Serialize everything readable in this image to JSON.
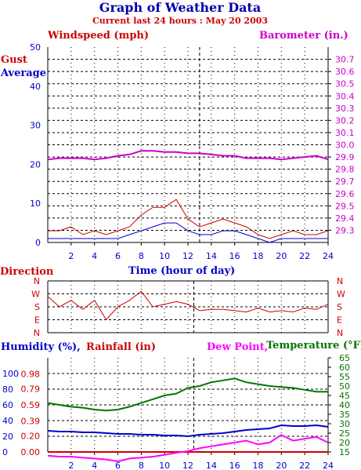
{
  "title": "Graph of Weather Data",
  "subtitle": "Current last 24 hours : May 20 2003",
  "colors": {
    "gust": "#cc0000",
    "average": "#0000cc",
    "barometer": "#cc00cc",
    "direction": "#cc0000",
    "humidity": "#0000cc",
    "rainfall": "#cc0000",
    "dewpoint": "#ff00ff",
    "temperature": "#007700",
    "axis_blue": "#0000cc"
  },
  "chart_data": [
    {
      "type": "line",
      "panel": "wind",
      "left_label": "Windspeed (mph)",
      "right_label": "Barometer (in.)",
      "legend": [
        "Gust",
        "Average"
      ],
      "xlabel": "Time (hour of day)",
      "xlim": [
        0,
        24
      ],
      "x_ticks": [
        "2",
        "4",
        "6",
        "8",
        "10",
        "12",
        "14",
        "16",
        "18",
        "20",
        "22",
        "24"
      ],
      "ylim_left": [
        0,
        50
      ],
      "y_ticks_left": [
        "0",
        "10",
        "20",
        "30",
        "40",
        "50"
      ],
      "ylim_right": [
        29.2,
        30.8
      ],
      "y_ticks_right": [
        "29.3",
        "29.4",
        "29.5",
        "29.6",
        "29.7",
        "29.8",
        "29.9",
        "30.0",
        "30.1",
        "30.2",
        "30.3",
        "30.4",
        "30.5",
        "30.6",
        "30.7"
      ],
      "grid": true,
      "marker_hour": 13,
      "series": [
        {
          "name": "Gust",
          "axis": "left",
          "x": [
            0,
            1,
            2,
            3,
            4,
            5,
            6,
            7,
            8,
            9,
            10,
            11,
            12,
            13,
            14,
            15,
            16,
            17,
            18,
            19,
            20,
            21,
            22,
            23,
            24
          ],
          "values": [
            3,
            3,
            4,
            2,
            3,
            2,
            3,
            4,
            7,
            9,
            9,
            11,
            6,
            4,
            5,
            6,
            5,
            4,
            2,
            1,
            2,
            3,
            2,
            2,
            3
          ]
        },
        {
          "name": "Average",
          "axis": "left",
          "x": [
            0,
            1,
            2,
            3,
            4,
            5,
            6,
            7,
            8,
            9,
            10,
            11,
            12,
            13,
            14,
            15,
            16,
            17,
            18,
            19,
            20,
            21,
            22,
            23,
            24
          ],
          "values": [
            1,
            1,
            1,
            1,
            1,
            1,
            1,
            2,
            3,
            4,
            5,
            5,
            3,
            2,
            2,
            3,
            3,
            2,
            1,
            0,
            1,
            1,
            1,
            1,
            1
          ]
        },
        {
          "name": "Barometer",
          "axis": "right",
          "x": [
            0,
            1,
            2,
            3,
            4,
            5,
            6,
            7,
            8,
            9,
            10,
            11,
            12,
            13,
            14,
            15,
            16,
            17,
            18,
            19,
            20,
            21,
            22,
            23,
            24
          ],
          "values": [
            29.88,
            29.89,
            29.89,
            29.89,
            29.88,
            29.89,
            29.91,
            29.92,
            29.95,
            29.95,
            29.94,
            29.94,
            29.93,
            29.93,
            29.92,
            29.91,
            29.91,
            29.89,
            29.89,
            29.89,
            29.88,
            29.89,
            29.9,
            29.91,
            29.88
          ]
        }
      ]
    },
    {
      "type": "line",
      "panel": "direction",
      "label": "Direction",
      "xlim": [
        0,
        24
      ],
      "y_categories": [
        "N",
        "W",
        "S",
        "E",
        "N"
      ],
      "series": [
        {
          "name": "Direction",
          "x": [
            0,
            1,
            2,
            3,
            4,
            5,
            6,
            7,
            8,
            9,
            10,
            11,
            12,
            13,
            14,
            15,
            16,
            17,
            18,
            19,
            20,
            21,
            22,
            23,
            24
          ],
          "values": [
            1.2,
            2,
            1.5,
            2.2,
            1.5,
            3,
            2,
            1.5,
            0.8,
            2,
            1.8,
            1.6,
            1.8,
            2.3,
            2.2,
            2.2,
            2.3,
            2.4,
            2.1,
            2.4,
            2.3,
            2.4,
            2.1,
            2.2,
            1.8
          ]
        }
      ]
    },
    {
      "type": "line",
      "panel": "humidity",
      "labels": [
        "Humidity (%),",
        "Rainfall (in)",
        "Dew Point,",
        "Temperature (°F)"
      ],
      "xlim": [
        0,
        24
      ],
      "x_ticks": [
        "2",
        "4",
        "6",
        "8",
        "10",
        "12",
        "14",
        "16",
        "18",
        "20",
        "22",
        "24"
      ],
      "ylim_humidity": [
        0,
        120
      ],
      "y_ticks_humidity": [
        "0",
        "20",
        "40",
        "60",
        "80",
        "100"
      ],
      "ylim_rainfall": [
        0,
        1.18
      ],
      "y_ticks_rainfall": [
        "0.00",
        "0.20",
        "0.39",
        "0.59",
        "0.79",
        "0.98"
      ],
      "ylim_temperature": [
        15,
        65
      ],
      "y_ticks_temperature": [
        "15",
        "20",
        "25",
        "30",
        "35",
        "40",
        "45",
        "50",
        "55",
        "60",
        "65"
      ],
      "grid": true,
      "series": [
        {
          "name": "Humidity",
          "axis": "humidity",
          "x": [
            0,
            1,
            2,
            3,
            4,
            5,
            6,
            7,
            8,
            9,
            10,
            11,
            12,
            13,
            14,
            15,
            16,
            17,
            18,
            19,
            20,
            21,
            22,
            23,
            24
          ],
          "values": [
            27,
            26,
            26,
            25,
            25,
            24,
            23,
            23,
            22,
            22,
            21,
            21,
            20,
            22,
            23,
            24,
            26,
            28,
            29,
            30,
            34,
            33,
            33,
            34,
            32
          ]
        },
        {
          "name": "Rainfall",
          "axis": "rainfall",
          "x": [
            0,
            1,
            2,
            3,
            4,
            5,
            6,
            7,
            8,
            9,
            10,
            11,
            12,
            13,
            14,
            15,
            16,
            17,
            18,
            19,
            20,
            21,
            22,
            23,
            24
          ],
          "values": [
            0,
            0,
            0,
            0,
            0,
            0,
            0,
            0,
            0,
            0,
            0,
            0,
            0,
            0,
            0,
            0,
            0,
            0,
            0,
            0,
            0,
            0,
            0,
            0,
            0
          ]
        },
        {
          "name": "Dew Point",
          "axis": "temperature",
          "x": [
            0,
            1,
            2,
            3,
            4,
            5,
            6,
            7,
            8,
            9,
            10,
            11,
            12,
            13,
            14,
            15,
            16,
            17,
            18,
            19,
            20,
            21,
            22,
            23,
            24
          ],
          "values": [
            13,
            12.5,
            12.5,
            12,
            11.5,
            11,
            10,
            11.5,
            12,
            12.5,
            13.5,
            14.5,
            15.5,
            17,
            18,
            19,
            20,
            21,
            19,
            20,
            24,
            21,
            22,
            23,
            20
          ]
        },
        {
          "name": "Temperature",
          "axis": "temperature",
          "x": [
            0,
            1,
            2,
            3,
            4,
            5,
            6,
            7,
            8,
            9,
            10,
            11,
            12,
            13,
            14,
            15,
            16,
            17,
            18,
            19,
            20,
            21,
            22,
            23,
            24
          ],
          "values": [
            41,
            40,
            39,
            38.5,
            37.5,
            37,
            37.5,
            39,
            41,
            43,
            45,
            46,
            49,
            50,
            52,
            53,
            54,
            52,
            51,
            50,
            49.5,
            49,
            48,
            47,
            47
          ]
        }
      ]
    }
  ]
}
